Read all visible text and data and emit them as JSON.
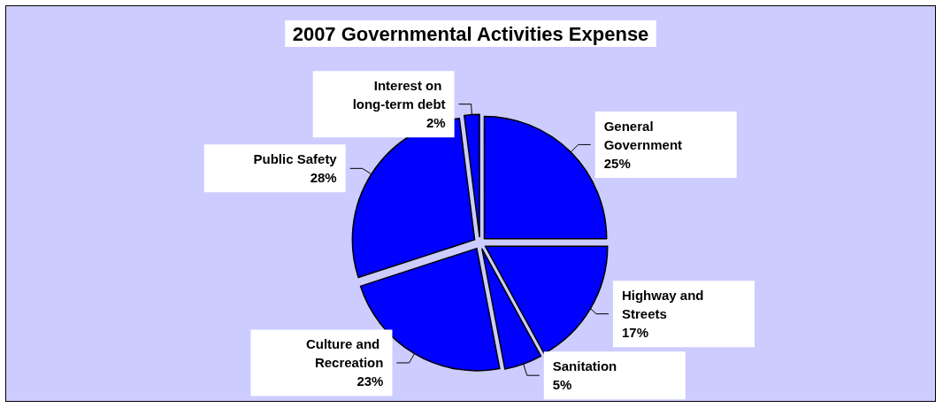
{
  "chart_data": {
    "type": "pie",
    "title": "2007 Governmental Activities Expense",
    "categories": [
      "General Government",
      "Highway and Streets",
      "Sanitation",
      "Culture and Recreation",
      "Public Safety",
      "Interest on long-term debt"
    ],
    "values": [
      25,
      17,
      5,
      23,
      28,
      2
    ],
    "value_labels": [
      "25%",
      "17%",
      "5%",
      "23%",
      "28%",
      "2%"
    ],
    "colors": [
      "#0000ff",
      "#0000ff",
      "#0000ff",
      "#0000ff",
      "#0000ff",
      "#0000ff"
    ],
    "legend": false
  }
}
